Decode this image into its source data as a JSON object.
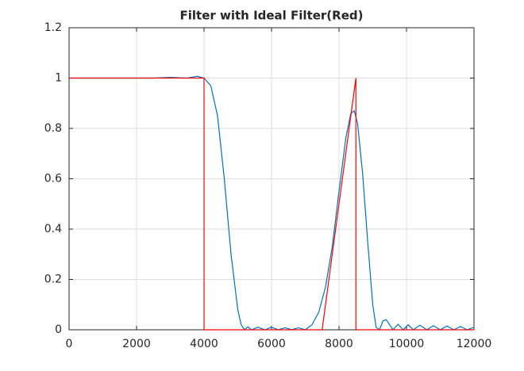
{
  "chart_data": {
    "type": "line",
    "title": "Filter with Ideal Filter(Red)",
    "xlim": [
      0,
      12000
    ],
    "xticks": [
      0,
      2000,
      4000,
      6000,
      8000,
      10000,
      12000
    ],
    "ylim": [
      0,
      1.2
    ],
    "yticks": [
      0,
      0.2,
      0.4,
      0.6,
      0.8,
      1,
      1.2
    ],
    "grid": true,
    "series": [
      {
        "color": "#0072bd",
        "x": [
          0,
          500,
          1000,
          1500,
          2000,
          2500,
          3000,
          3500,
          3800,
          4000,
          4200,
          4400,
          4600,
          4800,
          5000,
          5100,
          5200,
          5300,
          5400,
          5600,
          5800,
          6000,
          6200,
          6400,
          6600,
          6800,
          7000,
          7200,
          7400,
          7600,
          7800,
          8000,
          8200,
          8350,
          8450,
          8550,
          8700,
          8850,
          9000,
          9100,
          9200,
          9300,
          9400,
          9500,
          9600,
          9750,
          9900,
          10050,
          10200,
          10400,
          10600,
          10800,
          11000,
          11200,
          11400,
          11600,
          11800,
          12000
        ],
        "values": [
          1.0,
          1.0,
          1.0,
          1.0,
          1.0,
          1.0,
          1.003,
          1.0,
          1.007,
          1.0,
          0.97,
          0.85,
          0.6,
          0.3,
          0.08,
          0.02,
          0.0,
          0.012,
          0.0,
          0.01,
          0.0,
          0.01,
          0.0,
          0.008,
          0.0,
          0.008,
          0.0,
          0.02,
          0.07,
          0.17,
          0.33,
          0.55,
          0.76,
          0.86,
          0.87,
          0.82,
          0.62,
          0.35,
          0.1,
          0.01,
          0.0,
          0.035,
          0.04,
          0.02,
          0.0,
          0.022,
          0.0,
          0.02,
          0.0,
          0.018,
          0.0,
          0.016,
          0.0,
          0.015,
          0.0,
          0.013,
          0.0,
          0.01
        ]
      },
      {
        "color": "#ff0000",
        "x": [
          0,
          4000,
          4000,
          7500,
          8500,
          8500,
          12000
        ],
        "values": [
          1,
          1,
          0,
          0,
          1,
          0,
          0
        ]
      }
    ]
  }
}
